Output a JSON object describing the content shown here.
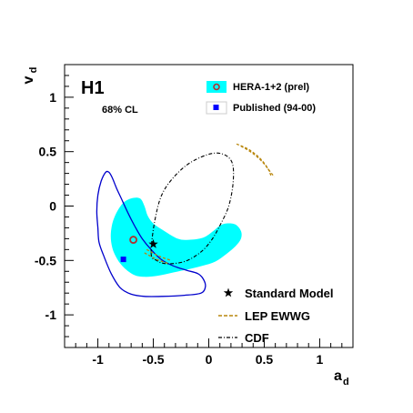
{
  "chart_data": {
    "type": "contour",
    "xlabel_main": "a",
    "xlabel_sub": "d",
    "ylabel_main": "v",
    "ylabel_sub": "d",
    "xlim": [
      -1.3,
      1.3
    ],
    "ylim": [
      -1.3,
      1.3
    ],
    "x_ticks": [
      -1,
      -0.5,
      0,
      0.5,
      1
    ],
    "x_tick_labels": [
      "-1",
      "-0.5",
      "0",
      "0.5",
      "1"
    ],
    "y_ticks": [
      -1,
      -0.5,
      0,
      0.5,
      1
    ],
    "y_tick_labels": [
      "-1",
      "-0.5",
      "0",
      "0.5",
      "1"
    ],
    "experiment_label": "H1",
    "cl_label": "68% CL",
    "colors": {
      "hera_fill": "#00ffff",
      "hera_point": "#b03030",
      "published": "#0000cc",
      "published_point": "#0000ff",
      "lep": "#b8860b",
      "cdf": "#000000",
      "sm": "#000000"
    },
    "legend_top": [
      {
        "key": "hera",
        "label": "HERA-1+2 (prel)"
      },
      {
        "key": "published",
        "label": "Published (94-00)"
      }
    ],
    "legend_bottom": [
      {
        "key": "sm",
        "label": "Standard Model"
      },
      {
        "key": "lep",
        "label": "LEP EWWG"
      },
      {
        "key": "cdf",
        "label": "CDF"
      }
    ],
    "points": {
      "hera_best": [
        -0.68,
        -0.31
      ],
      "published_best": [
        -0.77,
        -0.49
      ],
      "standard_model": [
        -0.5,
        -0.35
      ]
    },
    "hera_contour": [
      [
        -0.88,
        -0.22
      ],
      [
        -0.85,
        -0.1
      ],
      [
        -0.78,
        0.02
      ],
      [
        -0.7,
        0.07
      ],
      [
        -0.62,
        0.07
      ],
      [
        -0.58,
        0.0
      ],
      [
        -0.55,
        -0.09
      ],
      [
        -0.5,
        -0.16
      ],
      [
        -0.4,
        -0.23
      ],
      [
        -0.28,
        -0.3
      ],
      [
        -0.18,
        -0.31
      ],
      [
        -0.05,
        -0.29
      ],
      [
        0.04,
        -0.23
      ],
      [
        0.1,
        -0.18
      ],
      [
        0.16,
        -0.16
      ],
      [
        0.24,
        -0.17
      ],
      [
        0.29,
        -0.23
      ],
      [
        0.29,
        -0.3
      ],
      [
        0.24,
        -0.37
      ],
      [
        0.16,
        -0.44
      ],
      [
        0.06,
        -0.51
      ],
      [
        -0.06,
        -0.55
      ],
      [
        -0.18,
        -0.58
      ],
      [
        -0.32,
        -0.61
      ],
      [
        -0.46,
        -0.64
      ],
      [
        -0.58,
        -0.65
      ],
      [
        -0.68,
        -0.63
      ],
      [
        -0.78,
        -0.55
      ],
      [
        -0.85,
        -0.44
      ],
      [
        -0.88,
        -0.33
      ]
    ],
    "published_contour": [
      [
        -1.0,
        -0.2
      ],
      [
        -1.01,
        -0.05
      ],
      [
        -1.0,
        0.1
      ],
      [
        -0.97,
        0.23
      ],
      [
        -0.93,
        0.31
      ],
      [
        -0.9,
        0.31
      ],
      [
        -0.87,
        0.26
      ],
      [
        -0.83,
        0.16
      ],
      [
        -0.78,
        0.05
      ],
      [
        -0.73,
        -0.06
      ],
      [
        -0.67,
        -0.18
      ],
      [
        -0.6,
        -0.3
      ],
      [
        -0.52,
        -0.4
      ],
      [
        -0.43,
        -0.49
      ],
      [
        -0.32,
        -0.55
      ],
      [
        -0.2,
        -0.59
      ],
      [
        -0.1,
        -0.62
      ],
      [
        -0.05,
        -0.67
      ],
      [
        -0.03,
        -0.74
      ],
      [
        -0.07,
        -0.8
      ],
      [
        -0.22,
        -0.82
      ],
      [
        -0.42,
        -0.83
      ],
      [
        -0.58,
        -0.83
      ],
      [
        -0.7,
        -0.81
      ],
      [
        -0.8,
        -0.75
      ],
      [
        -0.88,
        -0.62
      ],
      [
        -0.95,
        -0.45
      ],
      [
        -0.99,
        -0.33
      ]
    ],
    "cdf_contour": [
      [
        -0.52,
        -0.43
      ],
      [
        -0.48,
        -0.1
      ],
      [
        -0.4,
        0.15
      ],
      [
        -0.22,
        0.36
      ],
      [
        -0.02,
        0.47
      ],
      [
        0.12,
        0.48
      ],
      [
        0.21,
        0.4
      ],
      [
        0.22,
        0.22
      ],
      [
        0.18,
        0.0
      ],
      [
        0.1,
        -0.18
      ],
      [
        0.02,
        -0.32
      ],
      [
        -0.08,
        -0.43
      ],
      [
        -0.22,
        -0.51
      ],
      [
        -0.38,
        -0.53
      ],
      [
        -0.47,
        -0.5
      ]
    ],
    "lep_line_1": [
      [
        0.25,
        0.57
      ],
      [
        0.36,
        0.52
      ],
      [
        0.46,
        0.44
      ],
      [
        0.53,
        0.35
      ],
      [
        0.56,
        0.28
      ]
    ],
    "lep_line_2": [
      [
        0.29,
        0.55
      ],
      [
        0.39,
        0.49
      ],
      [
        0.48,
        0.41
      ],
      [
        0.55,
        0.32
      ],
      [
        0.59,
        0.27
      ]
    ],
    "lep_arc_1": [
      [
        -0.58,
        -0.43
      ],
      [
        -0.47,
        -0.49
      ],
      [
        -0.36,
        -0.53
      ]
    ],
    "lep_arc_2": [
      [
        -0.56,
        -0.4
      ],
      [
        -0.45,
        -0.46
      ],
      [
        -0.34,
        -0.5
      ]
    ]
  }
}
